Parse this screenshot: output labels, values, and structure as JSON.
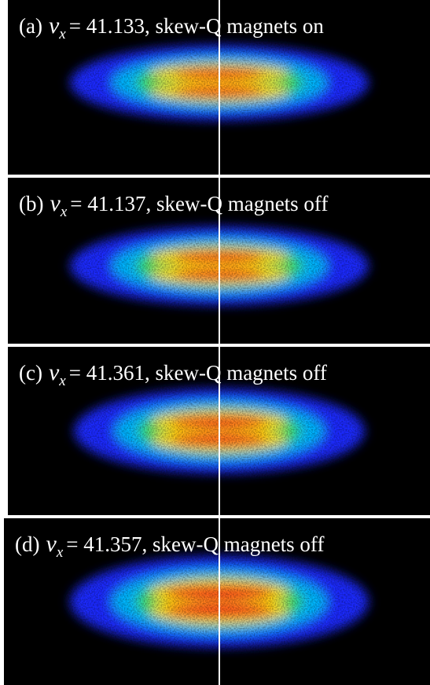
{
  "panels": [
    {
      "tag": "(a)",
      "symbol": "ν",
      "subscript": "x",
      "text": "= 41.133,  skew-Q magnets on"
    },
    {
      "tag": "(b)",
      "symbol": "ν",
      "subscript": "x",
      "text": "= 41.137,  skew-Q magnets off"
    },
    {
      "tag": "(c)",
      "symbol": "ν",
      "subscript": "x",
      "text": "= 41.361,  skew-Q magnets off"
    },
    {
      "tag": "(d)",
      "symbol": "ν",
      "subscript": "x",
      "text": "= 41.357,  skew-Q magnets off"
    }
  ]
}
